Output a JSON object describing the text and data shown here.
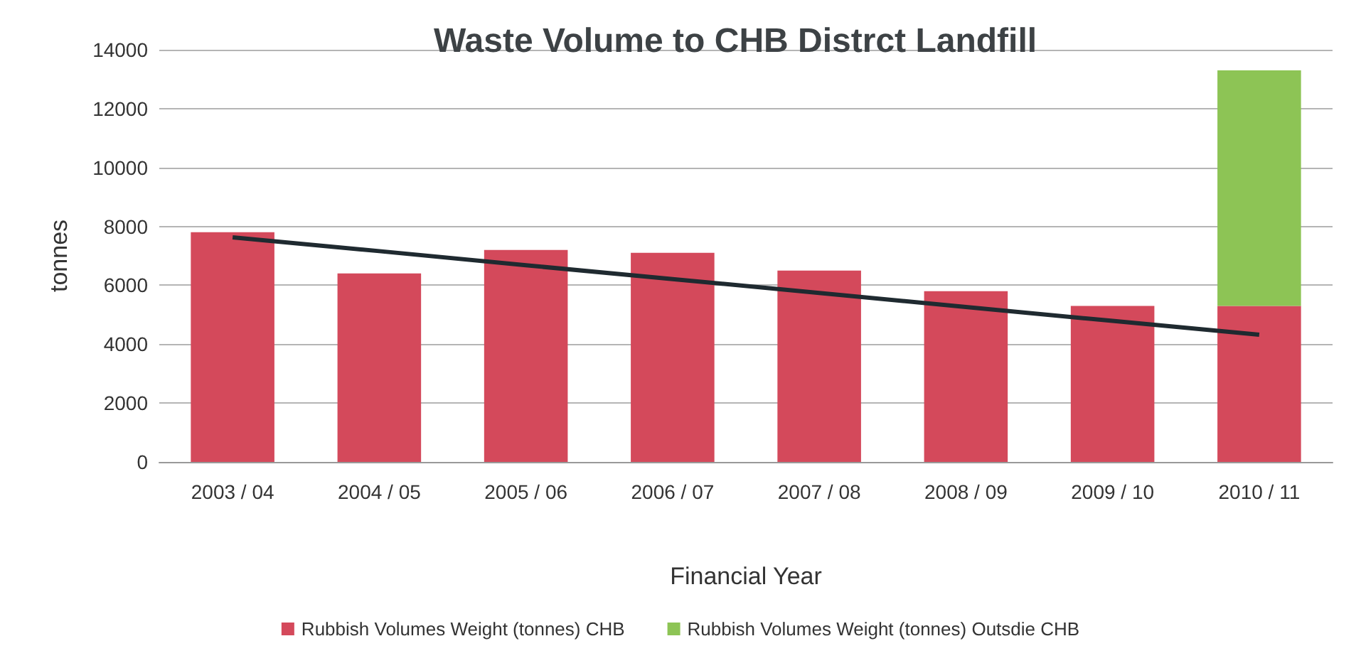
{
  "chart_data": {
    "type": "bar",
    "title": "Waste Volume to CHB Distrct Landfill",
    "xlabel": "Financial Year",
    "ylabel": "tonnes",
    "categories": [
      "2003 / 04",
      "2004 / 05",
      "2005 / 06",
      "2006 / 07",
      "2007 / 08",
      "2008 / 09",
      "2009 / 10",
      "2010 / 11"
    ],
    "stacked": true,
    "series": [
      {
        "name": "Rubbish Volumes Weight (tonnes) CHB",
        "color": "#d4495b",
        "values": [
          7800,
          6400,
          7200,
          7100,
          6500,
          5800,
          5300,
          5300
        ]
      },
      {
        "name": "Rubbish Volumes Weight (tonnes) Outsdie CHB",
        "color": "#8dc455",
        "values": [
          null,
          null,
          null,
          null,
          null,
          null,
          null,
          8000
        ]
      },
      {
        "type": "line",
        "color": "#1f2a30",
        "values": [
          7630,
          7160,
          6680,
          6210,
          5740,
          5260,
          4790,
          4320
        ]
      }
    ],
    "ylim": [
      0,
      14000
    ],
    "yticks": [
      0,
      2000,
      4000,
      6000,
      8000,
      10000,
      12000,
      14000
    ],
    "grid": "y",
    "legend": "bottom",
    "marker": "none"
  }
}
